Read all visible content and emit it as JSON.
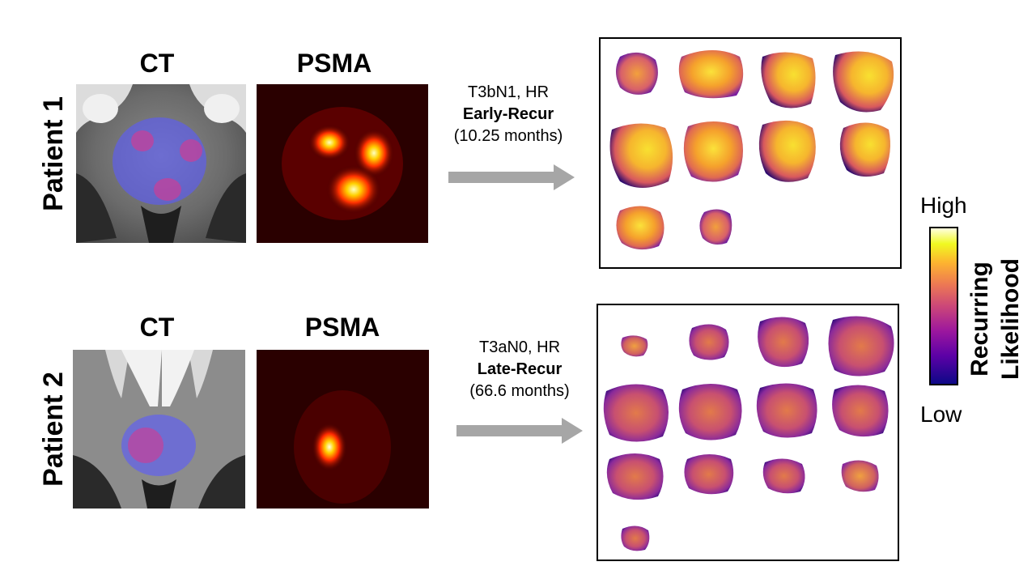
{
  "patients": [
    {
      "label": "Patient 1",
      "modality_ct": "CT",
      "modality_psma": "PSMA",
      "stage": "T3bN1, HR",
      "outcome": "Early-Recur",
      "duration": "(10.25 months)"
    },
    {
      "label": "Patient 2",
      "modality_ct": "CT",
      "modality_psma": "PSMA",
      "stage": "T3aN0, HR",
      "outcome": "Late-Recur",
      "duration": "(66.6 months)"
    }
  ],
  "legend": {
    "high": "High",
    "low": "Low",
    "title_line1": "Recurring",
    "title_line2": "Likelihood"
  },
  "colors": {
    "arrow": "#a6a6a6",
    "ct_overlay": "#5a5aff",
    "hot_spot": "#c4409a",
    "colormap": [
      "#0d0887",
      "#5c01a6",
      "#9c179e",
      "#cc4778",
      "#ed7953",
      "#fdb42f",
      "#f0f921",
      "#ffffe0"
    ]
  }
}
